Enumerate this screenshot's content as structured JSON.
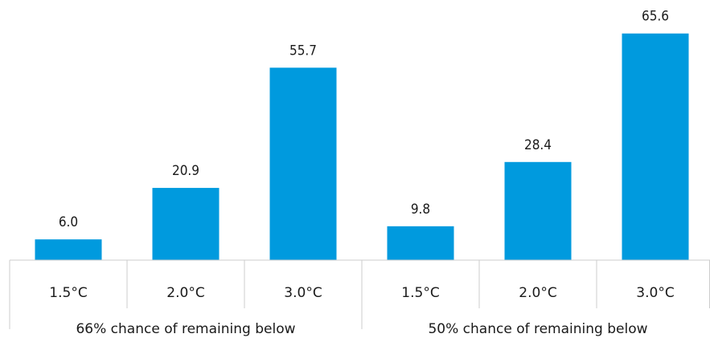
{
  "chart_data": {
    "type": "bar",
    "title": "",
    "xlabel": "",
    "ylabel": "",
    "ylim": [
      0,
      66
    ],
    "grid": false,
    "legend": "none",
    "bar_color": "#009ADE",
    "groups": [
      {
        "label": "66% chance of remaining below",
        "categories": [
          "1.5°C",
          "2.0°C",
          "3.0°C"
        ],
        "values": [
          6.0,
          20.9,
          55.7
        ],
        "value_labels": [
          "6.0",
          "20.9",
          "55.7"
        ]
      },
      {
        "label": "50% chance of remaining below",
        "categories": [
          "1.5°C",
          "2.0°C",
          "3.0°C"
        ],
        "values": [
          9.8,
          28.4,
          65.6
        ],
        "value_labels": [
          "9.8",
          "28.4",
          "65.6"
        ]
      }
    ]
  }
}
